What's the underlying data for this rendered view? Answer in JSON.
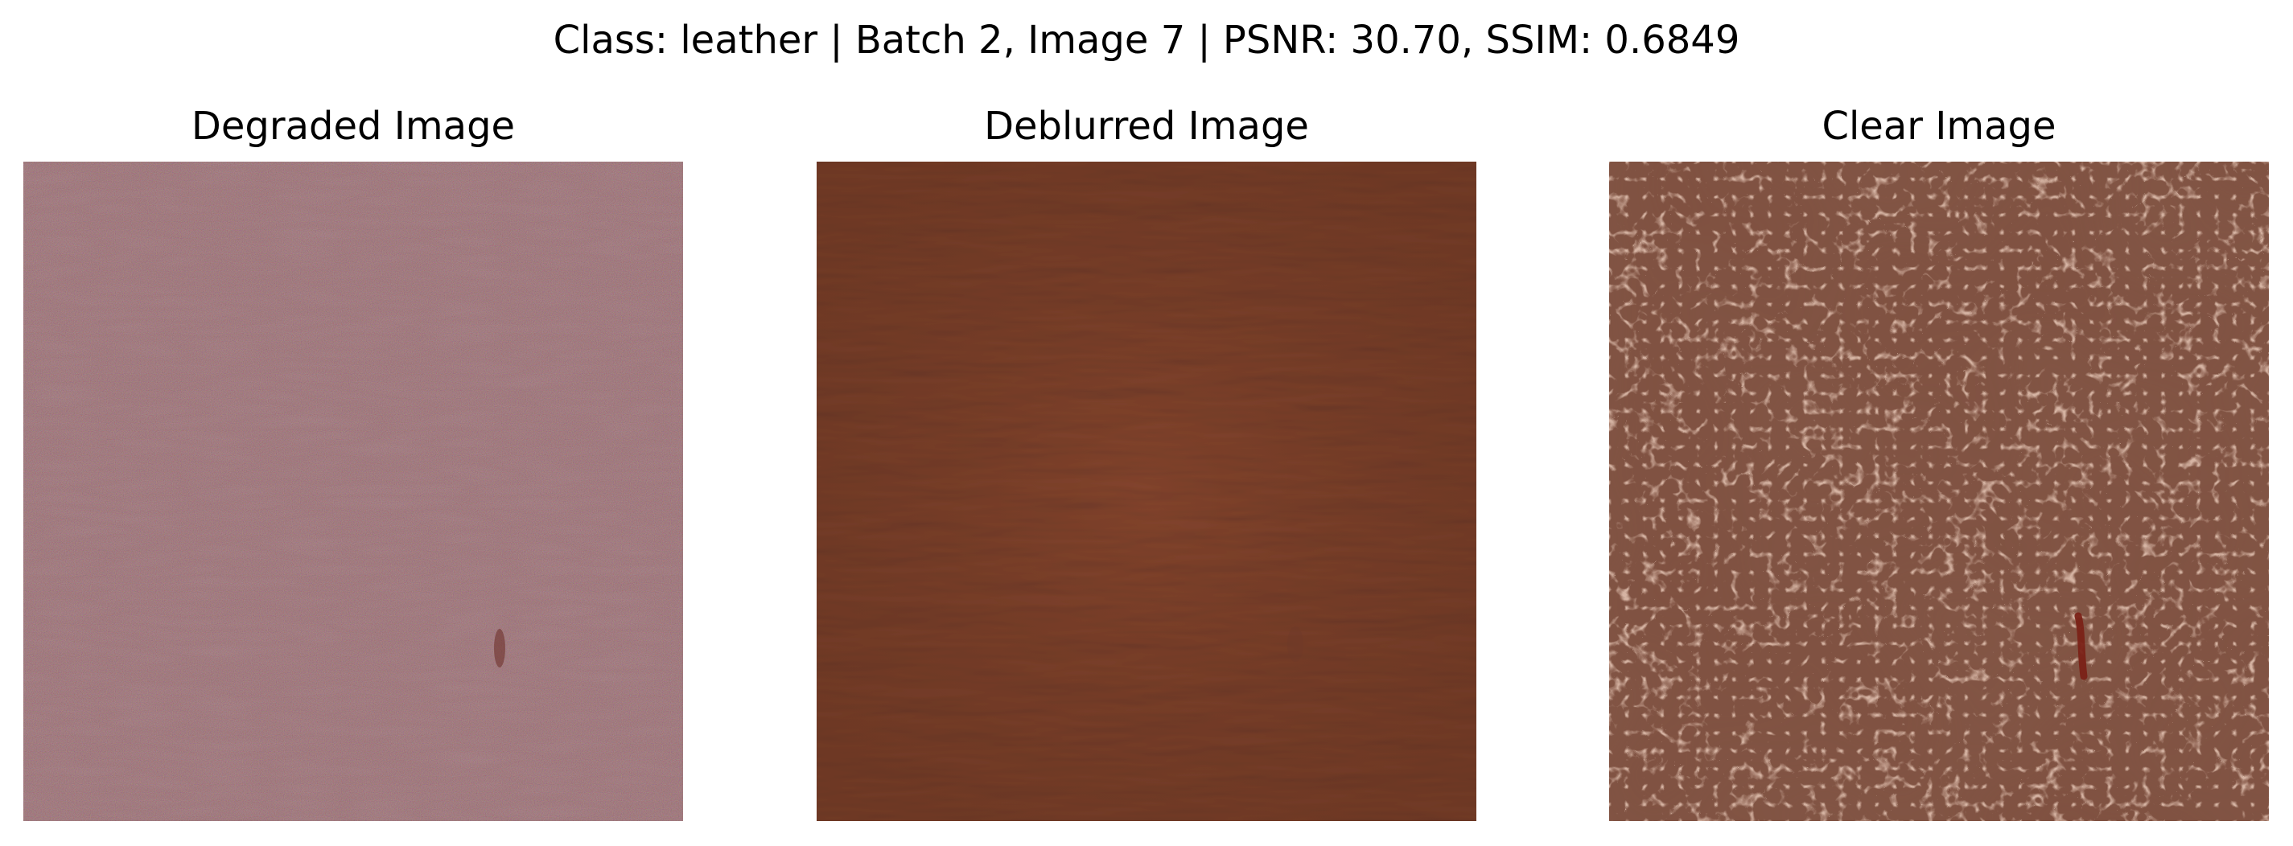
{
  "figure": {
    "suptitle": "Class: leather | Batch 2, Image 7 | PSNR: 30.70, SSIM: 0.6849",
    "panels": [
      {
        "title": "Degraded Image",
        "image": "noisy-leather-texture",
        "base_color": "#7a4e45",
        "texture_color": "#8a5560"
      },
      {
        "title": "Deblurred Image",
        "image": "smoothed-leather-texture",
        "base_color": "#8f5a44",
        "texture_color": "#6e3f2e"
      },
      {
        "title": "Clear Image",
        "image": "sharp-leather-texture",
        "base_color": "#7f5040",
        "texture_color": "#b88672",
        "defect_color": "#7a1f15"
      }
    ]
  }
}
